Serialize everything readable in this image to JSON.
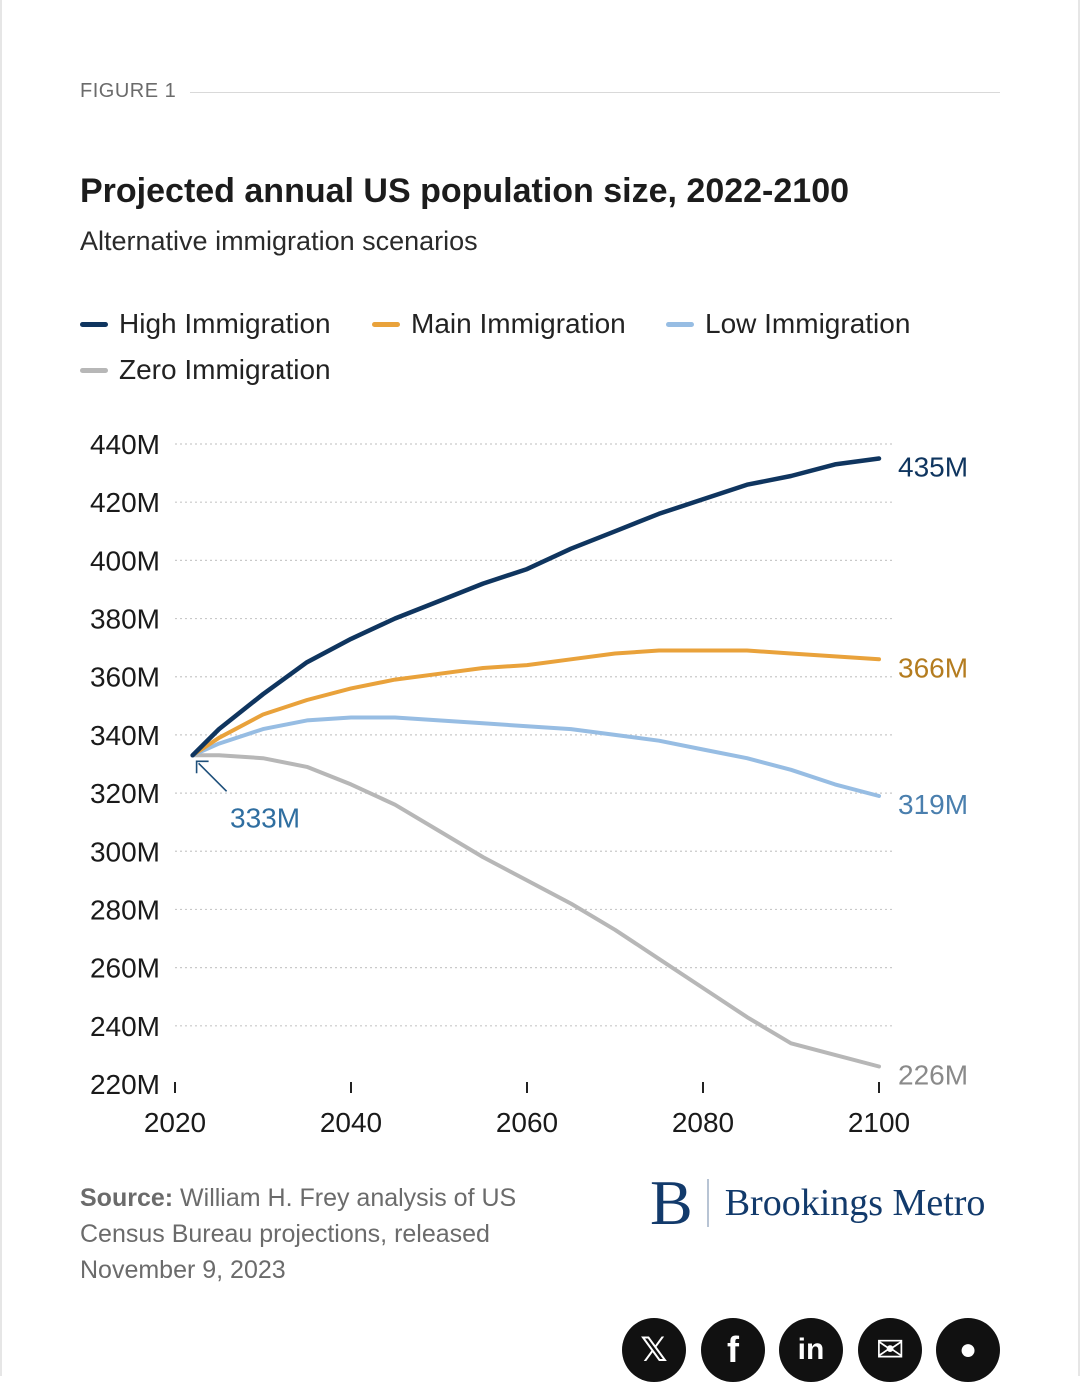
{
  "figure_label": "FIGURE 1",
  "chart_data": {
    "type": "line",
    "title": "Projected annual US population size, 2022-2100",
    "subtitle": "Alternative immigration scenarios",
    "xlim": [
      2020,
      2100
    ],
    "ylim": [
      220,
      440
    ],
    "x_ticks": [
      2020,
      2040,
      2060,
      2080,
      2100
    ],
    "x_tick_labels": [
      "2020",
      "2040",
      "2060",
      "2080",
      "2100"
    ],
    "y_ticks": [
      220,
      240,
      260,
      280,
      300,
      320,
      340,
      360,
      380,
      400,
      420,
      440
    ],
    "y_tick_labels": [
      "220M",
      "240M",
      "260M",
      "280M",
      "300M",
      "320M",
      "340M",
      "360M",
      "380M",
      "400M",
      "420M",
      "440M"
    ],
    "grid": "horizontal dotted",
    "legend_position": "top",
    "series": [
      {
        "name": "High Immigration",
        "color": "#0f355f",
        "end_label": "435M",
        "x": [
          2022,
          2025,
          2030,
          2035,
          2040,
          2045,
          2050,
          2055,
          2060,
          2065,
          2070,
          2075,
          2080,
          2085,
          2090,
          2095,
          2100
        ],
        "y": [
          333,
          342,
          354,
          365,
          373,
          380,
          386,
          392,
          397,
          404,
          410,
          416,
          421,
          426,
          429,
          433,
          435
        ]
      },
      {
        "name": "Main Immigration",
        "color": "#e9a23b",
        "end_label": "366M",
        "x": [
          2022,
          2025,
          2030,
          2035,
          2040,
          2045,
          2050,
          2055,
          2060,
          2065,
          2070,
          2075,
          2080,
          2085,
          2090,
          2095,
          2100
        ],
        "y": [
          333,
          339,
          347,
          352,
          356,
          359,
          361,
          363,
          364,
          366,
          368,
          369,
          369,
          369,
          368,
          367,
          366
        ]
      },
      {
        "name": "Low Immigration",
        "color": "#97bde3",
        "end_label": "319M",
        "x": [
          2022,
          2025,
          2030,
          2035,
          2040,
          2045,
          2050,
          2055,
          2060,
          2065,
          2070,
          2075,
          2080,
          2085,
          2090,
          2095,
          2100
        ],
        "y": [
          333,
          337,
          342,
          345,
          346,
          346,
          345,
          344,
          343,
          342,
          340,
          338,
          335,
          332,
          328,
          323,
          319
        ]
      },
      {
        "name": "Zero Immigration",
        "color": "#b7b7b7",
        "end_label": "226M",
        "x": [
          2022,
          2025,
          2030,
          2035,
          2040,
          2045,
          2050,
          2055,
          2060,
          2065,
          2070,
          2075,
          2080,
          2085,
          2090,
          2095,
          2100
        ],
        "y": [
          333,
          333,
          332,
          329,
          323,
          316,
          307,
          298,
          290,
          282,
          273,
          263,
          253,
          243,
          234,
          230,
          226
        ]
      }
    ],
    "annotations": [
      {
        "text": "333M",
        "x": 2022,
        "y": 333,
        "color": "#2f6ea0"
      }
    ],
    "end_label_colors": [
      "#0f355f",
      "#b47c1f",
      "#4a7fae",
      "#8a8a8a"
    ]
  },
  "source": {
    "label": "Source:",
    "text": " William H. Frey analysis of US Census Bureau projections, released November 9, 2023"
  },
  "logo": {
    "mark": "B",
    "text": "Brookings Metro",
    "color": "#123a6b"
  },
  "share_buttons": [
    {
      "icon": "x-icon",
      "glyph": "𝕏"
    },
    {
      "icon": "facebook-icon",
      "glyph": "f"
    },
    {
      "icon": "linkedin-icon",
      "glyph": "in"
    },
    {
      "icon": "email-icon",
      "glyph": "✉"
    },
    {
      "icon": "reddit-icon",
      "glyph": "●"
    }
  ]
}
